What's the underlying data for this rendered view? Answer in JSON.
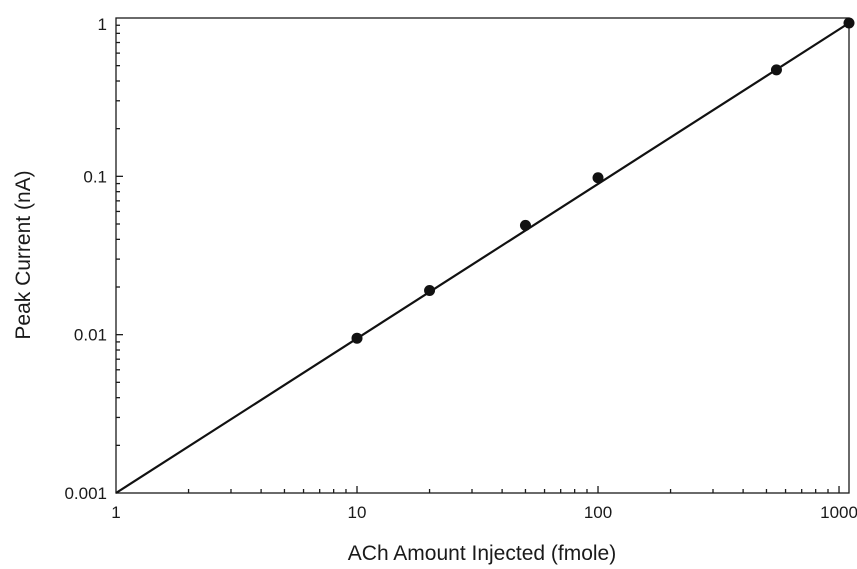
{
  "chart_data": {
    "type": "scatter",
    "title": "",
    "xlabel": "ACh Amount Injected (fmole)",
    "ylabel": "Peak Current (nA)",
    "x_scale": "log",
    "y_scale": "log",
    "xlim": [
      1,
      1100
    ],
    "ylim": [
      0.001,
      1
    ],
    "x_ticks": [
      1,
      10,
      100,
      1000
    ],
    "x_tick_labels": [
      "1",
      "10",
      "100",
      "1000"
    ],
    "y_ticks": [
      0.001,
      0.01,
      0.1,
      1
    ],
    "y_tick_labels": [
      "0.001",
      "0.01",
      "0.1",
      "1"
    ],
    "grid": false,
    "series": [
      {
        "points": [
          {
            "x": 10,
            "y": 0.0095
          },
          {
            "x": 20,
            "y": 0.019
          },
          {
            "x": 50,
            "y": 0.049
          },
          {
            "x": 100,
            "y": 0.098
          },
          {
            "x": 550,
            "y": 0.47
          },
          {
            "x": 1100,
            "y": 0.93
          }
        ]
      }
    ],
    "fit_line": {
      "from": [
        1,
        0.001
      ],
      "to": [
        1100,
        0.93
      ]
    }
  }
}
